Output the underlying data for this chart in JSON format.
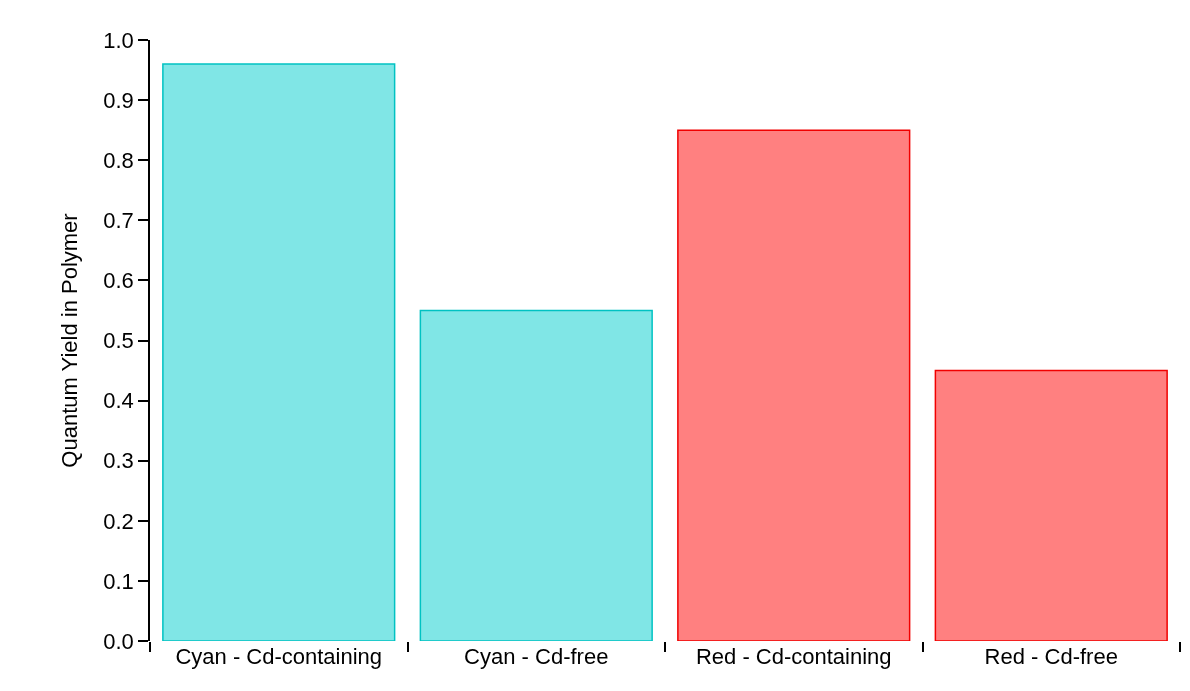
{
  "chart_data": {
    "type": "bar",
    "ylabel": "Quantum Yield in Polymer",
    "categories": [
      "Cyan - Cd-containing",
      "Cyan - Cd-free",
      "Red - Cd-containing",
      "Red - Cd-free"
    ],
    "values": [
      0.96,
      0.55,
      0.85,
      0.45
    ],
    "colors": [
      "#80e6e6",
      "#80e6e6",
      "#ff8080",
      "#ff8080"
    ],
    "ylim": [
      0,
      1.0
    ],
    "yticks": [
      {
        "value": 0,
        "label": "0.0"
      },
      0.1,
      0.2,
      0.3,
      0.4,
      0.5,
      0.6,
      0.7,
      0.8,
      0.9,
      {
        "value": 1,
        "label": "1.0"
      }
    ],
    "grid": false
  }
}
